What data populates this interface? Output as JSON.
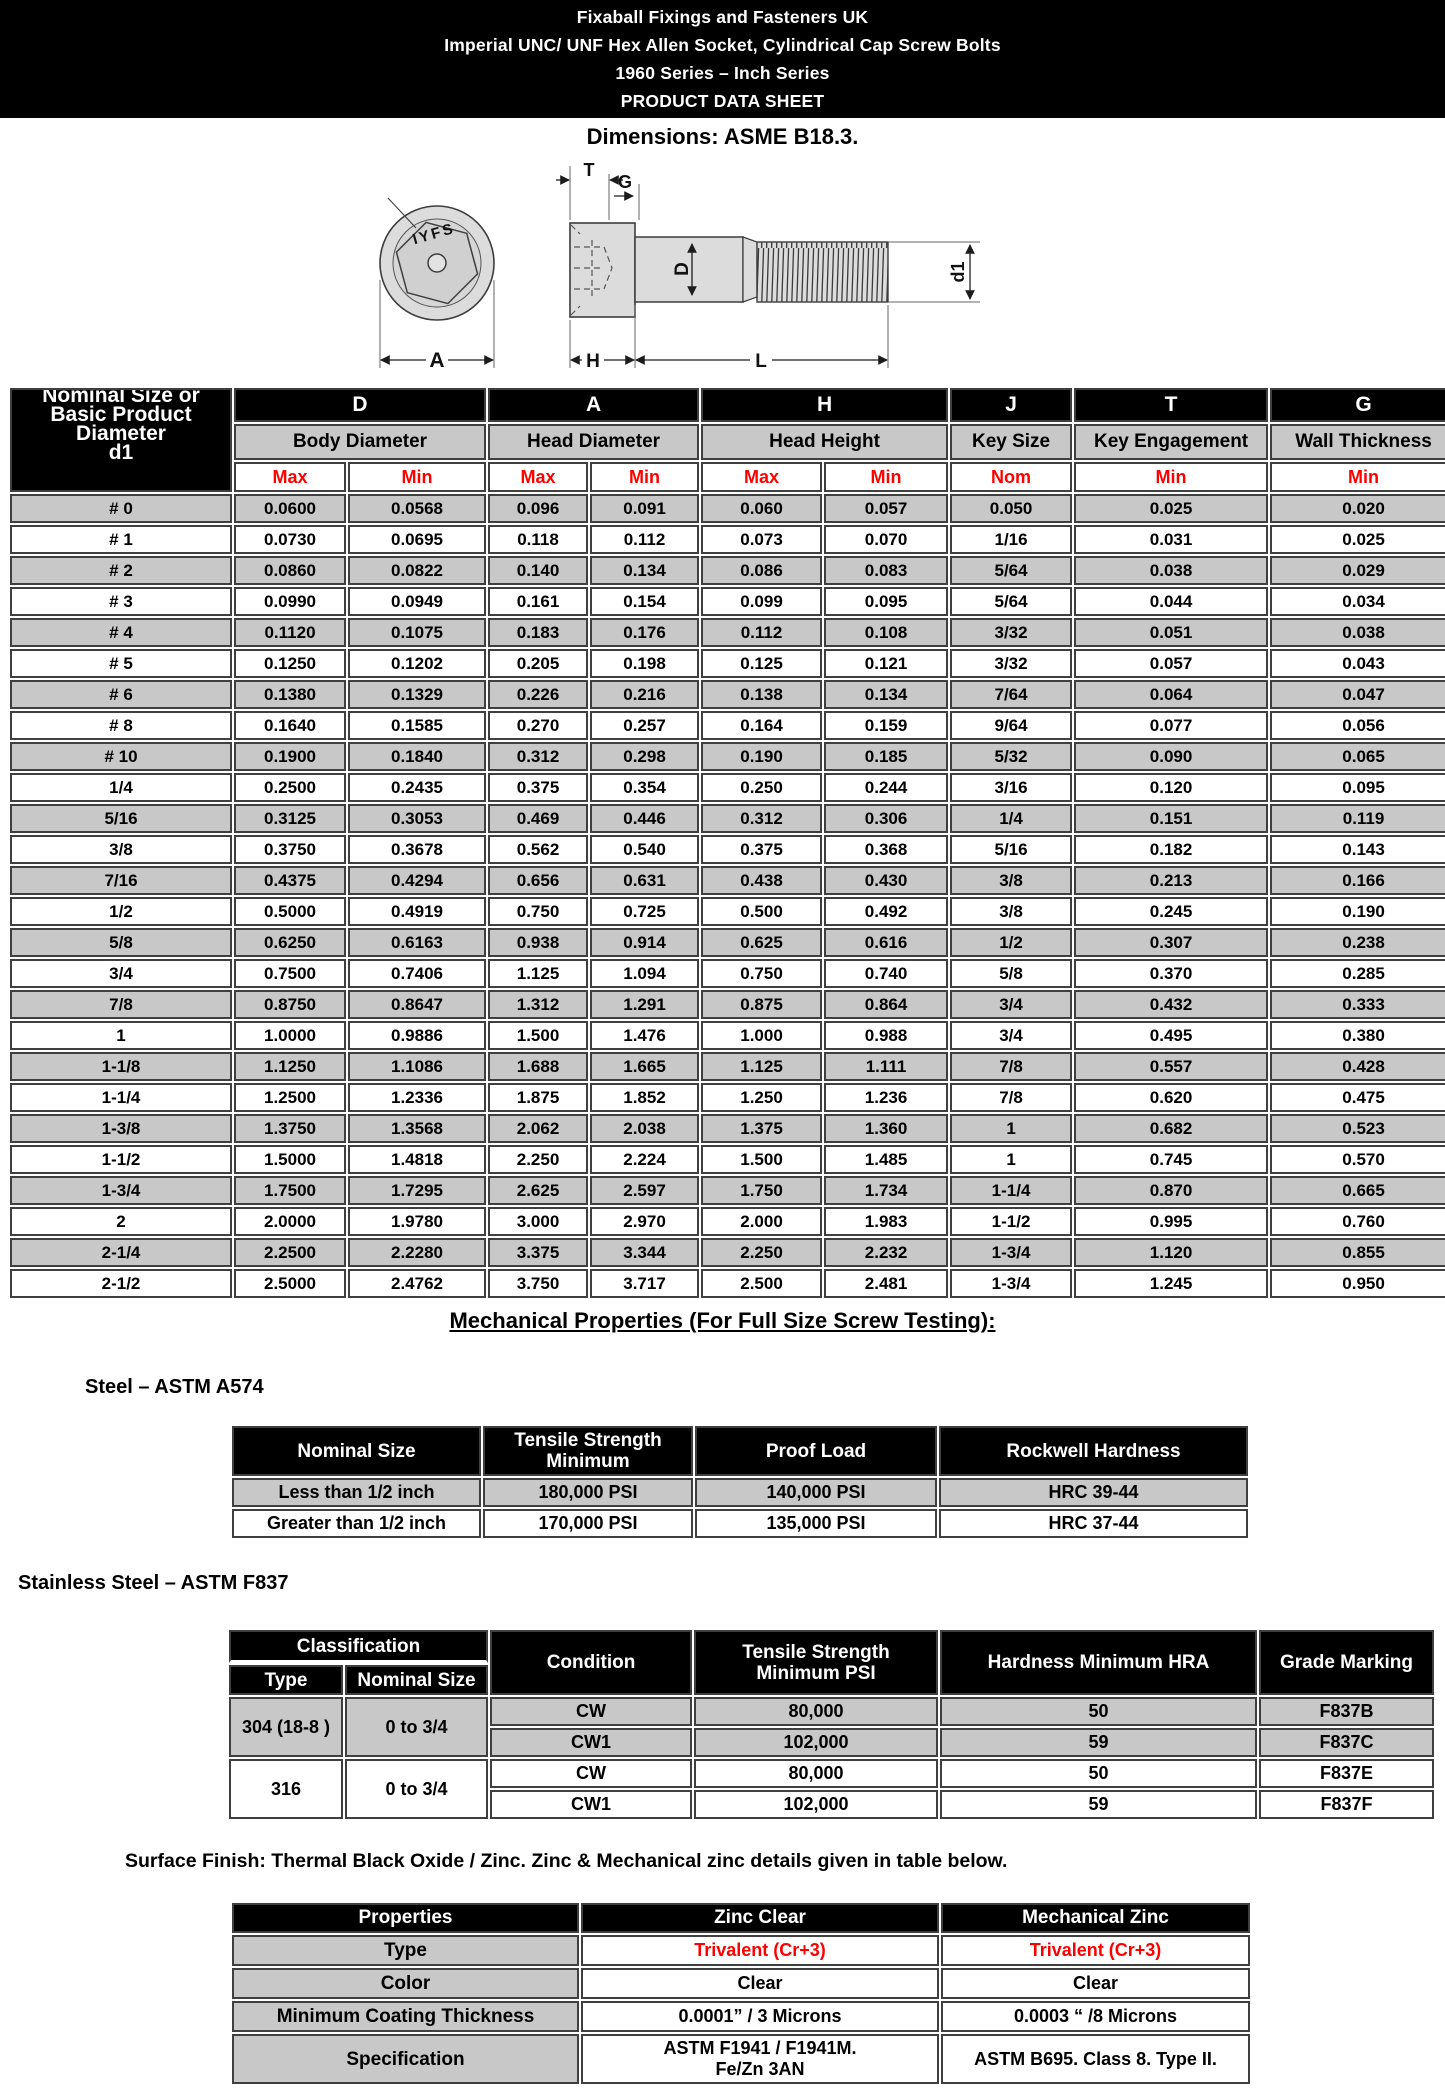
{
  "banner": {
    "line1": "Fixaball Fixings and Fasteners UK",
    "line2": "Imperial UNC/ UNF Hex Allen Socket, Cylindrical Cap Screw Bolts",
    "line3": "1960 Series – Inch Series",
    "line4": "PRODUCT DATA SHEET",
    "dimensions_note": "Dimensions: ASME B18.3."
  },
  "drawing": {
    "labels": {
      "T": "T",
      "G": "G",
      "D": "D",
      "d1": "d1",
      "H": "H",
      "L": "L",
      "A": "A",
      "engraving": "IYFS"
    }
  },
  "main_table": {
    "first_col_header": [
      "Nominal Size or",
      "Basic Product",
      "Diameter",
      "d1"
    ],
    "letters": [
      "D",
      "A",
      "H",
      "J",
      "T",
      "G"
    ],
    "names": [
      "Body Diameter",
      "Head Diameter",
      "Head Height",
      "Key Size",
      "Key Engagement",
      "Wall Thickness"
    ],
    "subs": [
      "Max",
      "Min",
      "Max",
      "Min",
      "Max",
      "Min",
      "Nom",
      "Min",
      "Min"
    ],
    "rows": [
      [
        "# 0",
        "0.0600",
        "0.0568",
        "0.096",
        "0.091",
        "0.060",
        "0.057",
        "0.050",
        "0.025",
        "0.020"
      ],
      [
        "# 1",
        "0.0730",
        "0.0695",
        "0.118",
        "0.112",
        "0.073",
        "0.070",
        "1/16",
        "0.031",
        "0.025"
      ],
      [
        "# 2",
        "0.0860",
        "0.0822",
        "0.140",
        "0.134",
        "0.086",
        "0.083",
        "5/64",
        "0.038",
        "0.029"
      ],
      [
        "# 3",
        "0.0990",
        "0.0949",
        "0.161",
        "0.154",
        "0.099",
        "0.095",
        "5/64",
        "0.044",
        "0.034"
      ],
      [
        "# 4",
        "0.1120",
        "0.1075",
        "0.183",
        "0.176",
        "0.112",
        "0.108",
        "3/32",
        "0.051",
        "0.038"
      ],
      [
        "# 5",
        "0.1250",
        "0.1202",
        "0.205",
        "0.198",
        "0.125",
        "0.121",
        "3/32",
        "0.057",
        "0.043"
      ],
      [
        "# 6",
        "0.1380",
        "0.1329",
        "0.226",
        "0.216",
        "0.138",
        "0.134",
        "7/64",
        "0.064",
        "0.047"
      ],
      [
        "# 8",
        "0.1640",
        "0.1585",
        "0.270",
        "0.257",
        "0.164",
        "0.159",
        "9/64",
        "0.077",
        "0.056"
      ],
      [
        "# 10",
        "0.1900",
        "0.1840",
        "0.312",
        "0.298",
        "0.190",
        "0.185",
        "5/32",
        "0.090",
        "0.065"
      ],
      [
        "1/4",
        "0.2500",
        "0.2435",
        "0.375",
        "0.354",
        "0.250",
        "0.244",
        "3/16",
        "0.120",
        "0.095"
      ],
      [
        "5/16",
        "0.3125",
        "0.3053",
        "0.469",
        "0.446",
        "0.312",
        "0.306",
        "1/4",
        "0.151",
        "0.119"
      ],
      [
        "3/8",
        "0.3750",
        "0.3678",
        "0.562",
        "0.540",
        "0.375",
        "0.368",
        "5/16",
        "0.182",
        "0.143"
      ],
      [
        "7/16",
        "0.4375",
        "0.4294",
        "0.656",
        "0.631",
        "0.438",
        "0.430",
        "3/8",
        "0.213",
        "0.166"
      ],
      [
        "1/2",
        "0.5000",
        "0.4919",
        "0.750",
        "0.725",
        "0.500",
        "0.492",
        "3/8",
        "0.245",
        "0.190"
      ],
      [
        "5/8",
        "0.6250",
        "0.6163",
        "0.938",
        "0.914",
        "0.625",
        "0.616",
        "1/2",
        "0.307",
        "0.238"
      ],
      [
        "3/4",
        "0.7500",
        "0.7406",
        "1.125",
        "1.094",
        "0.750",
        "0.740",
        "5/8",
        "0.370",
        "0.285"
      ],
      [
        "7/8",
        "0.8750",
        "0.8647",
        "1.312",
        "1.291",
        "0.875",
        "0.864",
        "3/4",
        "0.432",
        "0.333"
      ],
      [
        "1",
        "1.0000",
        "0.9886",
        "1.500",
        "1.476",
        "1.000",
        "0.988",
        "3/4",
        "0.495",
        "0.380"
      ],
      [
        "1-1/8",
        "1.1250",
        "1.1086",
        "1.688",
        "1.665",
        "1.125",
        "1.111",
        "7/8",
        "0.557",
        "0.428"
      ],
      [
        "1-1/4",
        "1.2500",
        "1.2336",
        "1.875",
        "1.852",
        "1.250",
        "1.236",
        "7/8",
        "0.620",
        "0.475"
      ],
      [
        "1-3/8",
        "1.3750",
        "1.3568",
        "2.062",
        "2.038",
        "1.375",
        "1.360",
        "1",
        "0.682",
        "0.523"
      ],
      [
        "1-1/2",
        "1.5000",
        "1.4818",
        "2.250",
        "2.224",
        "1.500",
        "1.485",
        "1",
        "0.745",
        "0.570"
      ],
      [
        "1-3/4",
        "1.7500",
        "1.7295",
        "2.625",
        "2.597",
        "1.750",
        "1.734",
        "1-1/4",
        "0.870",
        "0.665"
      ],
      [
        "2",
        "2.0000",
        "1.9780",
        "3.000",
        "2.970",
        "2.000",
        "1.983",
        "1-1/2",
        "0.995",
        "0.760"
      ],
      [
        "2-1/4",
        "2.2500",
        "2.2280",
        "3.375",
        "3.344",
        "2.250",
        "2.232",
        "1-3/4",
        "1.120",
        "0.855"
      ],
      [
        "2-1/2",
        "2.5000",
        "2.4762",
        "3.750",
        "3.717",
        "2.500",
        "2.481",
        "1-3/4",
        "1.245",
        "0.950"
      ]
    ]
  },
  "mechanical": {
    "title": "Mechanical Properties (For Full Size Screw Testing): ",
    "steel_heading": "Steel – ASTM A574",
    "steel_table": {
      "headers": [
        "Nominal Size",
        "Tensile Strength Minimum",
        "Proof Load",
        "Rockwell Hardness"
      ],
      "rows": [
        [
          "Less than 1/2 inch",
          "180,000 PSI",
          "140,000 PSI",
          "HRC 39-44"
        ],
        [
          "Greater than 1/2 inch",
          "170,000 PSI",
          "135,000 PSI",
          "HRC 37-44"
        ]
      ]
    },
    "stainless_heading": "Stainless Steel – ASTM F837",
    "stainless_table": {
      "classification_header": "Classification",
      "type_header": "Type",
      "nominal_header": "Nominal Size",
      "condition_header": "Condition",
      "tensile_header": "Tensile Strength Minimum PSI",
      "hardness_header": "Hardness Minimum HRA",
      "grade_header": "Grade Marking",
      "groups": [
        {
          "type": "304 (18-8 )",
          "nominal": "0 to 3/4",
          "rows": [
            [
              "CW",
              "80,000",
              "50",
              "F837B"
            ],
            [
              "CW1",
              "102,000",
              "59",
              "F837C"
            ]
          ]
        },
        {
          "type": "316",
          "nominal": "0 to 3/4",
          "rows": [
            [
              "CW",
              "80,000",
              "50",
              "F837E"
            ],
            [
              "CW1",
              "102,000",
              "59",
              "F837F"
            ]
          ]
        }
      ]
    }
  },
  "surface_finish_note": "Surface Finish: Thermal Black Oxide / Zinc. Zinc & Mechanical zinc details given in table below.",
  "finish_table": {
    "headers": [
      "Properties",
      "Zinc Clear",
      "Mechanical Zinc"
    ],
    "type_label": "Type",
    "type_zinc": "Trivalent (Cr+3)",
    "type_mech": "Trivalent (Cr+3)",
    "color_label": "Color",
    "color_zinc": "Clear",
    "color_mech": "Clear",
    "thickness_label": "Minimum Coating Thickness",
    "thickness_zinc": "0.0001” / 3 Microns",
    "thickness_mech": "0.0003 “ /8 Microns",
    "spec_label": "Specification",
    "spec_zinc_l1": "ASTM F1941 / F1941M.",
    "spec_zinc_l2": "Fe/Zn 3AN",
    "spec_mech": "ASTM B695. Class 8. Type II."
  },
  "colors": {
    "header_black": "#000000",
    "row_gray": "#c8c8c8",
    "accent_red": "#ff0000"
  }
}
